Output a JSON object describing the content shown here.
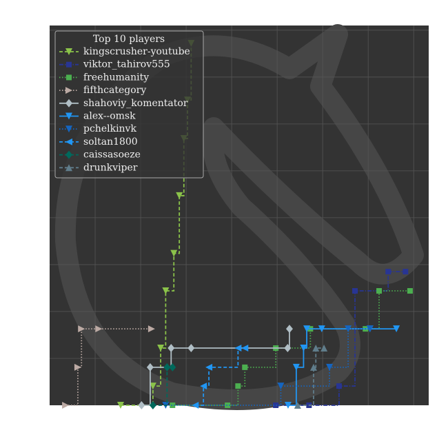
{
  "chart_data": {
    "type": "step",
    "legend_title": "Top 10 players",
    "legend_position": "upper left",
    "grid": true,
    "xlim": [
      0,
      8.33
    ],
    "ylim": [
      0,
      8.1
    ],
    "xticks": [
      0,
      1,
      2,
      3,
      4,
      5,
      6,
      7,
      8
    ],
    "yticks": [
      0,
      1,
      2,
      3,
      4,
      5,
      6,
      7,
      8
    ],
    "series": [
      {
        "name": "kingscrusher-youtube",
        "color": "#8bc34a",
        "linestyle": "dashed",
        "marker": "triangle-down",
        "x": [
          1.56,
          2.27,
          2.44,
          2.55,
          2.73,
          2.85,
          2.95,
          3.03,
          3.11
        ],
        "values": [
          0,
          0.41,
          1.22,
          2.44,
          3.24,
          4.47,
          5.69,
          6.51,
          7.72
        ]
      },
      {
        "name": "viktor_tahirov555",
        "color": "#283593",
        "linestyle": "dashdot",
        "marker": "square",
        "x": [
          4.97,
          5.7,
          6.36,
          6.71,
          7.44,
          7.82
        ],
        "values": [
          0,
          0,
          0.41,
          2.44,
          2.85,
          2.85
        ]
      },
      {
        "name": "freehumanity",
        "color": "#4caf50",
        "linestyle": "dotted",
        "marker": "square",
        "x": [
          2.7,
          3.91,
          4.14,
          4.29,
          4.97,
          5.73,
          6.94,
          7.24,
          7.92
        ],
        "values": [
          0,
          0,
          0.41,
          0.81,
          1.22,
          1.63,
          1.63,
          2.44,
          2.44
        ]
      },
      {
        "name": "fifthcategory",
        "color": "#bcaaa4",
        "linestyle": "dotted",
        "marker": "triangle-right",
        "x": [
          0.35,
          0.62,
          0.7,
          1.08,
          2.24
        ],
        "values": [
          0,
          0.81,
          1.63,
          1.63,
          1.63
        ]
      },
      {
        "name": "shahoviy_komentator",
        "color": "#b0bec5",
        "linestyle": "solid",
        "marker": "diamond",
        "x": [
          2.02,
          2.21,
          2.67,
          3.11,
          5.23,
          5.27
        ],
        "values": [
          0,
          0.81,
          1.22,
          1.22,
          1.22,
          1.63
        ]
      },
      {
        "name": "alex--omsk",
        "color": "#2196f3",
        "linestyle": "solid",
        "marker": "triangle-down",
        "x": [
          5.24,
          5.42,
          5.58,
          5.65,
          5.98,
          7.04,
          7.62
        ],
        "values": [
          0,
          0.81,
          1.22,
          1.63,
          1.63,
          1.63,
          1.63
        ]
      },
      {
        "name": "pchelkinvk",
        "color": "#1565c0",
        "linestyle": "dotted",
        "marker": "triangle-down",
        "x": [
          2.55,
          5.08,
          6.15,
          6.56,
          7.04
        ],
        "values": [
          0,
          0.41,
          0.81,
          1.63,
          1.63
        ]
      },
      {
        "name": "soltan1800",
        "color": "#2196f3",
        "linestyle": "dashed",
        "marker": "triangle-left",
        "x": [
          3.2,
          3.38,
          3.5,
          4.14,
          4.29
        ],
        "values": [
          0,
          0.41,
          0.81,
          1.22,
          1.22
        ]
      },
      {
        "name": "caissasoeze",
        "color": "#00695c",
        "linestyle": "dashed",
        "marker": "diamond",
        "x": [
          2.27,
          2.58,
          2.7
        ],
        "values": [
          0,
          0.81,
          0.81
        ]
      },
      {
        "name": "drunkviper",
        "color": "#607d8b",
        "linestyle": "dashed",
        "marker": "triangle-up",
        "x": [
          5.45,
          5.8,
          5.85,
          6.03
        ],
        "values": [
          0,
          0.81,
          1.22,
          1.22
        ]
      }
    ]
  }
}
